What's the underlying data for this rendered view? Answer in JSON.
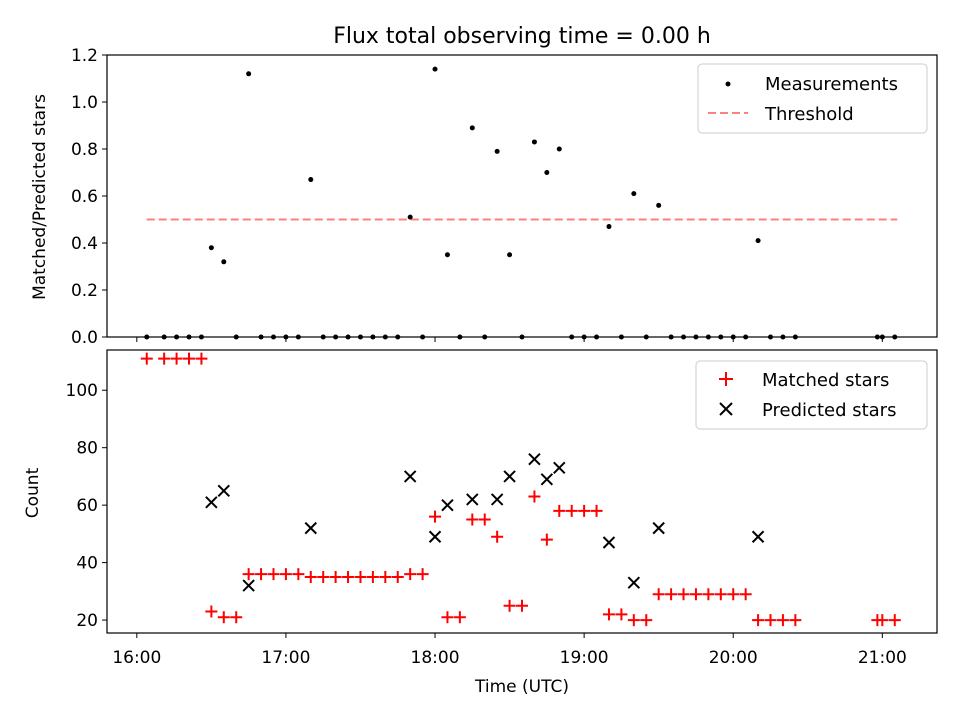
{
  "chart_data": [
    {
      "type": "scatter",
      "title": "Flux total observing time = 0.00 h",
      "ylabel": "Matched/Predicted stars",
      "xlabel": "",
      "xlim": [
        "15:48",
        "21:22"
      ],
      "ylim": [
        0,
        1.2
      ],
      "yticks": [
        "0.0",
        "0.2",
        "0.4",
        "0.6",
        "0.8",
        "1.0",
        "1.2"
      ],
      "legend": [
        "Measurements",
        "Threshold"
      ],
      "legend_position": "top-right",
      "threshold": {
        "value": 0.5,
        "x_start": "16:04",
        "x_end": "21:06",
        "color": "#ff7f7f"
      },
      "series": [
        {
          "name": "Measurements",
          "color": "#000000",
          "points": [
            [
              "16:04",
              0
            ],
            [
              "16:11",
              0
            ],
            [
              "16:16",
              0
            ],
            [
              "16:21",
              0
            ],
            [
              "16:26",
              0
            ],
            [
              "16:30",
              0.38
            ],
            [
              "16:35",
              0.32
            ],
            [
              "16:40",
              0
            ],
            [
              "16:45",
              1.12
            ],
            [
              "16:50",
              0
            ],
            [
              "16:55",
              0
            ],
            [
              "17:00",
              0
            ],
            [
              "17:05",
              0
            ],
            [
              "17:10",
              0.67
            ],
            [
              "17:15",
              0
            ],
            [
              "17:20",
              0
            ],
            [
              "17:25",
              0
            ],
            [
              "17:30",
              0
            ],
            [
              "17:35",
              0
            ],
            [
              "17:40",
              0
            ],
            [
              "17:45",
              0
            ],
            [
              "17:50",
              0.51
            ],
            [
              "17:55",
              0
            ],
            [
              "18:00",
              1.14
            ],
            [
              "18:05",
              0.35
            ],
            [
              "18:10",
              0
            ],
            [
              "18:15",
              0.89
            ],
            [
              "18:20",
              0
            ],
            [
              "18:25",
              0.79
            ],
            [
              "18:30",
              0.35
            ],
            [
              "18:35",
              0
            ],
            [
              "18:40",
              0.83
            ],
            [
              "18:45",
              0.7
            ],
            [
              "18:50",
              0.8
            ],
            [
              "18:55",
              0
            ],
            [
              "19:00",
              0
            ],
            [
              "19:05",
              0
            ],
            [
              "19:10",
              0.47
            ],
            [
              "19:15",
              0
            ],
            [
              "19:20",
              0.61
            ],
            [
              "19:25",
              0
            ],
            [
              "19:30",
              0.56
            ],
            [
              "19:35",
              0
            ],
            [
              "19:40",
              0
            ],
            [
              "19:45",
              0
            ],
            [
              "19:50",
              0
            ],
            [
              "19:55",
              0
            ],
            [
              "20:00",
              0
            ],
            [
              "20:05",
              0
            ],
            [
              "20:10",
              0.41
            ],
            [
              "20:15",
              0
            ],
            [
              "20:20",
              0
            ],
            [
              "20:25",
              0
            ],
            [
              "20:58",
              0
            ],
            [
              "21:00",
              0
            ],
            [
              "21:05",
              0
            ]
          ]
        }
      ]
    },
    {
      "type": "scatter",
      "title": "",
      "ylabel": "Count",
      "xlabel": "Time (UTC)",
      "xlim": [
        "15:48",
        "21:22"
      ],
      "ylim": [
        15.5,
        114
      ],
      "xticks": [
        "16:00",
        "17:00",
        "18:00",
        "19:00",
        "20:00",
        "21:00"
      ],
      "yticks": [
        "20",
        "40",
        "60",
        "80",
        "100"
      ],
      "legend": [
        "Matched stars",
        "Predicted stars"
      ],
      "legend_position": "top-right",
      "series": [
        {
          "name": "Matched stars",
          "color": "#ff0000",
          "marker": "+",
          "points": [
            [
              "16:04",
              111
            ],
            [
              "16:11",
              111
            ],
            [
              "16:16",
              111
            ],
            [
              "16:21",
              111
            ],
            [
              "16:26",
              111
            ],
            [
              "16:30",
              23
            ],
            [
              "16:35",
              21
            ],
            [
              "16:40",
              21
            ],
            [
              "16:45",
              36
            ],
            [
              "16:50",
              36
            ],
            [
              "16:55",
              36
            ],
            [
              "17:00",
              36
            ],
            [
              "17:05",
              36
            ],
            [
              "17:10",
              35
            ],
            [
              "17:15",
              35
            ],
            [
              "17:20",
              35
            ],
            [
              "17:25",
              35
            ],
            [
              "17:30",
              35
            ],
            [
              "17:35",
              35
            ],
            [
              "17:40",
              35
            ],
            [
              "17:45",
              35
            ],
            [
              "17:50",
              36
            ],
            [
              "17:55",
              36
            ],
            [
              "18:00",
              56
            ],
            [
              "18:05",
              21
            ],
            [
              "18:10",
              21
            ],
            [
              "18:15",
              55
            ],
            [
              "18:20",
              55
            ],
            [
              "18:25",
              49
            ],
            [
              "18:30",
              25
            ],
            [
              "18:35",
              25
            ],
            [
              "18:40",
              63
            ],
            [
              "18:45",
              48
            ],
            [
              "18:50",
              58
            ],
            [
              "18:55",
              58
            ],
            [
              "19:00",
              58
            ],
            [
              "19:05",
              58
            ],
            [
              "19:10",
              22
            ],
            [
              "19:15",
              22
            ],
            [
              "19:20",
              20
            ],
            [
              "19:25",
              20
            ],
            [
              "19:30",
              29
            ],
            [
              "19:35",
              29
            ],
            [
              "19:40",
              29
            ],
            [
              "19:45",
              29
            ],
            [
              "19:50",
              29
            ],
            [
              "19:55",
              29
            ],
            [
              "20:00",
              29
            ],
            [
              "20:05",
              29
            ],
            [
              "20:10",
              20
            ],
            [
              "20:15",
              20
            ],
            [
              "20:20",
              20
            ],
            [
              "20:25",
              20
            ],
            [
              "20:58",
              20
            ],
            [
              "21:00",
              20
            ],
            [
              "21:05",
              20
            ]
          ]
        },
        {
          "name": "Predicted stars",
          "color": "#000000",
          "marker": "x",
          "points": [
            [
              "16:30",
              61
            ],
            [
              "16:35",
              65
            ],
            [
              "16:45",
              32
            ],
            [
              "17:10",
              52
            ],
            [
              "17:50",
              70
            ],
            [
              "18:00",
              49
            ],
            [
              "18:05",
              60
            ],
            [
              "18:15",
              62
            ],
            [
              "18:25",
              62
            ],
            [
              "18:30",
              70
            ],
            [
              "18:40",
              76
            ],
            [
              "18:45",
              69
            ],
            [
              "18:50",
              73
            ],
            [
              "19:10",
              47
            ],
            [
              "19:20",
              33
            ],
            [
              "19:30",
              52
            ],
            [
              "20:10",
              49
            ]
          ]
        }
      ]
    }
  ]
}
